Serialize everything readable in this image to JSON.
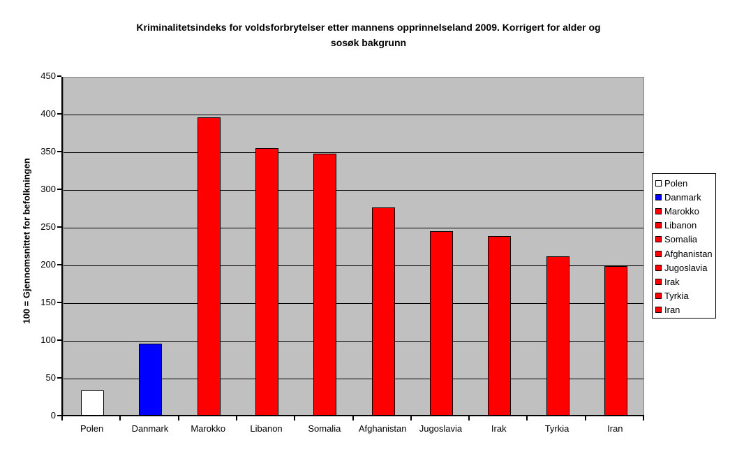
{
  "chart_data": {
    "type": "bar",
    "title": "Kriminalitetsindeks for voldsforbrytelser etter mannens opprinnelseland 2009. Korrigert for alder og sosøk bakgrunn",
    "title_line1": "Kriminalitetsindeks for voldsforbrytelser etter mannens opprinnelseland 2009. Korrigert for alder og",
    "title_line2": "sosøk bakgrunn",
    "xlabel": "",
    "ylabel": "100 = Gjennomsnittet for befolkningen",
    "ylim": [
      0,
      450
    ],
    "ytick_step": 50,
    "yticks": [
      0,
      50,
      100,
      150,
      200,
      250,
      300,
      350,
      400,
      450
    ],
    "grid": true,
    "legend_position": "right",
    "categories": [
      "Polen",
      "Danmark",
      "Marokko",
      "Libanon",
      "Somalia",
      "Afghanistan",
      "Jugoslavia",
      "Irak",
      "Tyrkia",
      "Iran"
    ],
    "values": [
      33,
      95,
      395,
      355,
      347,
      276,
      244,
      238,
      211,
      198
    ],
    "bar_colors": [
      "#FFFFFF",
      "#0000FF",
      "#FF0000",
      "#FF0000",
      "#FF0000",
      "#FF0000",
      "#FF0000",
      "#FF0000",
      "#FF0000",
      "#FF0000"
    ],
    "colors": {
      "background": "#FFFFFF",
      "plot_bg": "#C0C0C0",
      "plot_border": "#808080",
      "gridline": "#000000",
      "axis": "#000000",
      "bar_border": "#000000",
      "legend_bg": "#FFFFFF",
      "legend_border": "#000000",
      "text": "#000000"
    }
  }
}
